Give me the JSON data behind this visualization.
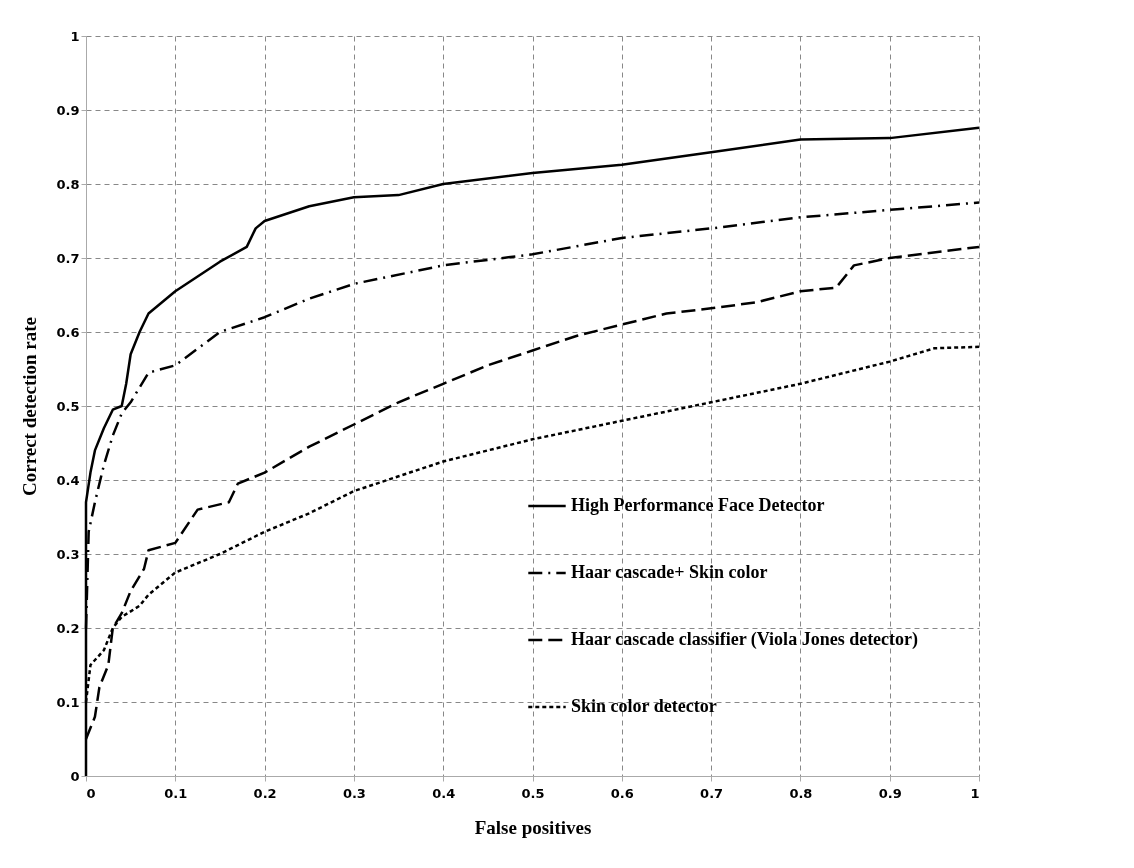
{
  "chart_data": {
    "type": "line",
    "xlabel": "False positives",
    "ylabel": "Correct  detection rate",
    "xlim": [
      0,
      1
    ],
    "ylim": [
      0,
      1
    ],
    "xticks": [
      0,
      0.1,
      0.2,
      0.3,
      0.4,
      0.5,
      0.6,
      0.7,
      0.8,
      0.9,
      1
    ],
    "yticks": [
      0,
      0.1,
      0.2,
      0.3,
      0.4,
      0.5,
      0.6,
      0.7,
      0.8,
      0.9,
      1
    ],
    "grid": true,
    "legend": "bottom right",
    "series": [
      {
        "name": "High Performance Face Detector",
        "color": "#000000",
        "line_style": "solid",
        "x": [
          0,
          0,
          0.005,
          0.01,
          0.02,
          0.03,
          0.04,
          0.045,
          0.05,
          0.06,
          0.07,
          0.1,
          0.15,
          0.18,
          0.19,
          0.2,
          0.25,
          0.3,
          0.35,
          0.4,
          0.5,
          0.6,
          0.7,
          0.8,
          0.9,
          1
        ],
        "values": [
          0,
          0.37,
          0.41,
          0.44,
          0.47,
          0.495,
          0.5,
          0.53,
          0.57,
          0.6,
          0.625,
          0.655,
          0.695,
          0.715,
          0.74,
          0.75,
          0.77,
          0.782,
          0.785,
          0.8,
          0.815,
          0.826,
          0.843,
          0.86,
          0.862,
          0.876
        ]
      },
      {
        "name": "Haar cascade+ Skin color",
        "color": "#000000",
        "line_style": "dashdot",
        "x": [
          0,
          0.003,
          0.01,
          0.02,
          0.03,
          0.04,
          0.05,
          0.07,
          0.1,
          0.15,
          0.2,
          0.25,
          0.3,
          0.4,
          0.5,
          0.6,
          0.7,
          0.8,
          0.9,
          1
        ],
        "values": [
          0.2,
          0.33,
          0.37,
          0.42,
          0.46,
          0.49,
          0.505,
          0.545,
          0.555,
          0.6,
          0.62,
          0.645,
          0.665,
          0.69,
          0.705,
          0.727,
          0.74,
          0.755,
          0.765,
          0.775
        ]
      },
      {
        "name": "Haar cascade classifier (Viola Jones detector)",
        "color": "#000000",
        "line_style": "dashed",
        "x": [
          0,
          0.01,
          0.015,
          0.025,
          0.03,
          0.04,
          0.05,
          0.065,
          0.07,
          0.1,
          0.125,
          0.16,
          0.17,
          0.2,
          0.25,
          0.3,
          0.35,
          0.4,
          0.45,
          0.5,
          0.55,
          0.6,
          0.65,
          0.7,
          0.75,
          0.8,
          0.84,
          0.86,
          0.9,
          1
        ],
        "values": [
          0.05,
          0.08,
          0.12,
          0.15,
          0.2,
          0.22,
          0.25,
          0.28,
          0.305,
          0.315,
          0.36,
          0.37,
          0.395,
          0.41,
          0.445,
          0.475,
          0.505,
          0.53,
          0.555,
          0.575,
          0.595,
          0.61,
          0.625,
          0.632,
          0.64,
          0.655,
          0.66,
          0.69,
          0.7,
          0.715
        ]
      },
      {
        "name": "Skin color detector",
        "color": "#000000",
        "line_style": "dotted",
        "x": [
          0,
          0.005,
          0.02,
          0.03,
          0.04,
          0.06,
          0.07,
          0.1,
          0.15,
          0.2,
          0.25,
          0.3,
          0.35,
          0.4,
          0.45,
          0.5,
          0.6,
          0.7,
          0.8,
          0.9,
          0.95,
          1
        ],
        "values": [
          0.1,
          0.15,
          0.17,
          0.2,
          0.215,
          0.23,
          0.245,
          0.275,
          0.3,
          0.33,
          0.355,
          0.385,
          0.405,
          0.425,
          0.44,
          0.455,
          0.48,
          0.505,
          0.53,
          0.56,
          0.578,
          0.58
        ]
      }
    ]
  }
}
